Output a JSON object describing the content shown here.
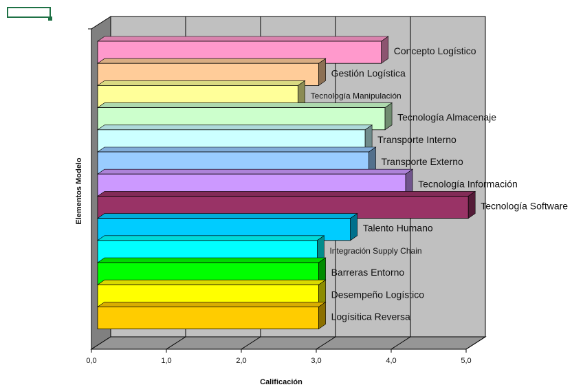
{
  "chart_data": {
    "type": "bar",
    "orientation": "horizontal",
    "three_d": true,
    "xlabel": "Calificación",
    "ylabel": "Elementos Modelo",
    "xlim": [
      0,
      5
    ],
    "ticks": [
      "0,0",
      "1,0",
      "2,0",
      "3,0",
      "4,0",
      "5,0"
    ],
    "grid": true,
    "legend": "none",
    "categories": [
      "Concepto Logístico",
      "Gestión Logística",
      "Tecnología Manipulación",
      "Tecnología Almacenaje",
      "Transporte Interno",
      "Transporte Externo",
      "Tecnología Información",
      "Tecnología Software",
      "Talento Humano",
      "Integración Supply Chain",
      "Barreras Entorno",
      "Desempeño Logístico",
      "Logísitica Reversa"
    ],
    "values": [
      3.85,
      3.0,
      2.72,
      3.9,
      3.63,
      3.68,
      4.18,
      5.03,
      3.43,
      2.98,
      3.0,
      3.0,
      3.0
    ],
    "colors": [
      "#ff99cc",
      "#ffcc99",
      "#ffff99",
      "#ccffcc",
      "#ccffff",
      "#99ccff",
      "#cc99ff",
      "#993366",
      "#00ccff",
      "#00ffff",
      "#00ff00",
      "#ffff00",
      "#ffcc00"
    ],
    "small_label_categories": [
      "Tecnología Manipulación",
      "Integración Supply Chain"
    ]
  },
  "theme": {
    "wall_color": "#c0c0c0",
    "floor_color": "#969696",
    "side_wall_color": "#808080",
    "grid_color": "#000000",
    "selection_color": "#1e7145"
  }
}
